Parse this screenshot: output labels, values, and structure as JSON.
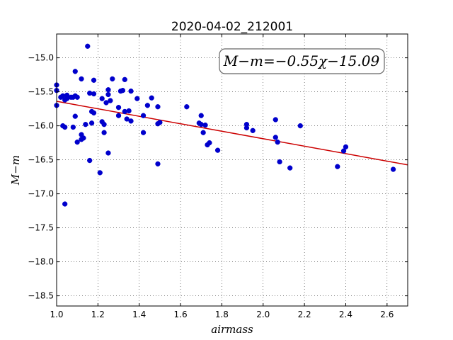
{
  "chart_data": {
    "type": "scatter",
    "title": "2020-04-02_212001",
    "xlabel": "airmass",
    "ylabel": "M−m",
    "xlim": [
      1.0,
      2.7
    ],
    "ylim": [
      -18.65,
      -14.65
    ],
    "x_ticks": [
      1.0,
      1.2,
      1.4,
      1.6,
      1.8,
      2.0,
      2.2,
      2.4,
      2.6
    ],
    "x_tick_labels": [
      "1.0",
      "1.2",
      "1.4",
      "1.6",
      "1.8",
      "2.0",
      "2.2",
      "2.4",
      "2.6"
    ],
    "y_ticks": [
      -15.0,
      -15.5,
      -16.0,
      -16.5,
      -17.0,
      -17.5,
      -18.0,
      -18.5
    ],
    "y_tick_labels": [
      "−15.0",
      "−15.5",
      "−16.0",
      "−16.5",
      "−17.0",
      "−17.5",
      "−18.0",
      "−18.5"
    ],
    "grid": true,
    "annotation": "M−m=−0.55χ−15.09",
    "annotation_position": "top-right",
    "fit": {
      "slope": -0.55,
      "intercept": -15.09,
      "color": "#cc0000"
    },
    "marker_color": "#0000cc",
    "points": [
      {
        "x": 1.0,
        "y": -15.4
      },
      {
        "x": 1.0,
        "y": -15.48
      },
      {
        "x": 1.0,
        "y": -15.7
      },
      {
        "x": 1.02,
        "y": -15.58
      },
      {
        "x": 1.03,
        "y": -15.56
      },
      {
        "x": 1.04,
        "y": -15.62
      },
      {
        "x": 1.05,
        "y": -15.55
      },
      {
        "x": 1.05,
        "y": -15.6
      },
      {
        "x": 1.07,
        "y": -15.58
      },
      {
        "x": 1.08,
        "y": -15.58
      },
      {
        "x": 1.09,
        "y": -15.56
      },
      {
        "x": 1.1,
        "y": -15.58
      },
      {
        "x": 1.03,
        "y": -16.0
      },
      {
        "x": 1.04,
        "y": -16.02
      },
      {
        "x": 1.08,
        "y": -16.02
      },
      {
        "x": 1.09,
        "y": -15.86
      },
      {
        "x": 1.1,
        "y": -16.24
      },
      {
        "x": 1.04,
        "y": -17.15
      },
      {
        "x": 1.09,
        "y": -15.2
      },
      {
        "x": 1.12,
        "y": -15.31
      },
      {
        "x": 1.15,
        "y": -14.83
      },
      {
        "x": 1.12,
        "y": -16.13
      },
      {
        "x": 1.12,
        "y": -16.2
      },
      {
        "x": 1.13,
        "y": -16.18
      },
      {
        "x": 1.14,
        "y": -15.98
      },
      {
        "x": 1.16,
        "y": -16.51
      },
      {
        "x": 1.16,
        "y": -15.52
      },
      {
        "x": 1.17,
        "y": -15.96
      },
      {
        "x": 1.17,
        "y": -15.79
      },
      {
        "x": 1.18,
        "y": -15.81
      },
      {
        "x": 1.18,
        "y": -15.53
      },
      {
        "x": 1.18,
        "y": -15.33
      },
      {
        "x": 1.21,
        "y": -16.69
      },
      {
        "x": 1.22,
        "y": -15.6
      },
      {
        "x": 1.22,
        "y": -15.94
      },
      {
        "x": 1.23,
        "y": -15.98
      },
      {
        "x": 1.23,
        "y": -16.1
      },
      {
        "x": 1.24,
        "y": -15.66
      },
      {
        "x": 1.25,
        "y": -15.47
      },
      {
        "x": 1.25,
        "y": -15.54
      },
      {
        "x": 1.25,
        "y": -16.4
      },
      {
        "x": 1.26,
        "y": -15.63
      },
      {
        "x": 1.27,
        "y": -15.31
      },
      {
        "x": 1.3,
        "y": -15.73
      },
      {
        "x": 1.3,
        "y": -15.85
      },
      {
        "x": 1.31,
        "y": -15.49
      },
      {
        "x": 1.32,
        "y": -15.48
      },
      {
        "x": 1.33,
        "y": -15.32
      },
      {
        "x": 1.33,
        "y": -15.79
      },
      {
        "x": 1.34,
        "y": -15.9
      },
      {
        "x": 1.35,
        "y": -15.78
      },
      {
        "x": 1.36,
        "y": -15.93
      },
      {
        "x": 1.36,
        "y": -15.49
      },
      {
        "x": 1.39,
        "y": -15.6
      },
      {
        "x": 1.42,
        "y": -15.85
      },
      {
        "x": 1.42,
        "y": -16.1
      },
      {
        "x": 1.44,
        "y": -15.7
      },
      {
        "x": 1.46,
        "y": -15.59
      },
      {
        "x": 1.49,
        "y": -15.72
      },
      {
        "x": 1.49,
        "y": -15.97
      },
      {
        "x": 1.5,
        "y": -15.95
      },
      {
        "x": 1.49,
        "y": -16.56
      },
      {
        "x": 1.63,
        "y": -15.72
      },
      {
        "x": 1.69,
        "y": -15.96
      },
      {
        "x": 1.7,
        "y": -15.85
      },
      {
        "x": 1.7,
        "y": -15.98
      },
      {
        "x": 1.71,
        "y": -16.1
      },
      {
        "x": 1.72,
        "y": -15.99
      },
      {
        "x": 1.73,
        "y": -16.28
      },
      {
        "x": 1.74,
        "y": -16.25
      },
      {
        "x": 1.78,
        "y": -16.36
      },
      {
        "x": 1.92,
        "y": -15.98
      },
      {
        "x": 1.92,
        "y": -16.03
      },
      {
        "x": 1.95,
        "y": -16.07
      },
      {
        "x": 2.06,
        "y": -15.91
      },
      {
        "x": 2.06,
        "y": -16.17
      },
      {
        "x": 2.07,
        "y": -16.24
      },
      {
        "x": 2.08,
        "y": -16.53
      },
      {
        "x": 2.13,
        "y": -16.62
      },
      {
        "x": 2.18,
        "y": -16.0
      },
      {
        "x": 2.36,
        "y": -16.6
      },
      {
        "x": 2.39,
        "y": -16.37
      },
      {
        "x": 2.4,
        "y": -16.31
      },
      {
        "x": 2.63,
        "y": -16.64
      }
    ]
  }
}
